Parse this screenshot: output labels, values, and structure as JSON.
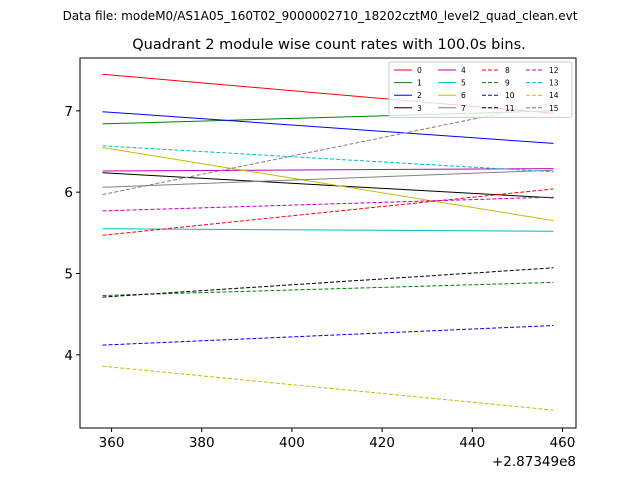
{
  "figure": {
    "suptitle": "Data file: modeM0/AS1A05_160T02_9000002710_18202cztM0_level2_quad_clean.evt",
    "title": "Quadrant 2 module wise count rates with 100.0s bins.",
    "x_offset_label": "+2.87349e8"
  },
  "chart_data": {
    "type": "line",
    "title": "Quadrant 2 module wise count rates with 100.0s bins.",
    "xlabel": "",
    "ylabel": "",
    "x_offset": 287349000,
    "xlim": [
      353,
      463
    ],
    "ylim": [
      3.1,
      7.65
    ],
    "xticks": [
      360,
      380,
      400,
      420,
      440,
      460
    ],
    "yticks": [
      4,
      5,
      6,
      7
    ],
    "xtick_labels": [
      "360",
      "380",
      "400",
      "420",
      "440",
      "460"
    ],
    "ytick_labels": [
      "4",
      "5",
      "6",
      "7"
    ],
    "grid": false,
    "legend_position": "top-right",
    "legend_columns": 4,
    "series": [
      {
        "name": "0",
        "color": "#ff0000",
        "style": "solid",
        "x": [
          358,
          458
        ],
        "y": [
          7.45,
          6.97
        ]
      },
      {
        "name": "1",
        "color": "#008000",
        "style": "solid",
        "x": [
          358,
          458
        ],
        "y": [
          6.84,
          7.0
        ]
      },
      {
        "name": "2",
        "color": "#0000ff",
        "style": "solid",
        "x": [
          358,
          458
        ],
        "y": [
          6.99,
          6.6
        ]
      },
      {
        "name": "3",
        "color": "#000000",
        "style": "solid",
        "x": [
          358,
          458
        ],
        "y": [
          6.24,
          5.93
        ]
      },
      {
        "name": "4",
        "color": "#bf00bf",
        "style": "solid",
        "x": [
          358,
          458
        ],
        "y": [
          6.26,
          6.29
        ]
      },
      {
        "name": "5",
        "color": "#00bfbf",
        "style": "solid",
        "x": [
          358,
          458
        ],
        "y": [
          5.55,
          5.52
        ]
      },
      {
        "name": "6",
        "color": "#bfbf00",
        "style": "solid",
        "x": [
          358,
          458
        ],
        "y": [
          6.55,
          5.65
        ]
      },
      {
        "name": "7",
        "color": "#808080",
        "style": "solid",
        "x": [
          358,
          458
        ],
        "y": [
          6.06,
          6.27
        ]
      },
      {
        "name": "8",
        "color": "#ff0000",
        "style": "dashed",
        "x": [
          358,
          458
        ],
        "y": [
          5.47,
          6.04
        ]
      },
      {
        "name": "9",
        "color": "#008000",
        "style": "dashed",
        "x": [
          358,
          458
        ],
        "y": [
          4.73,
          4.89
        ]
      },
      {
        "name": "10",
        "color": "#0000ff",
        "style": "dashed",
        "x": [
          358,
          458
        ],
        "y": [
          4.12,
          4.36
        ]
      },
      {
        "name": "11",
        "color": "#000000",
        "style": "dashed",
        "x": [
          358,
          458
        ],
        "y": [
          4.71,
          5.07
        ]
      },
      {
        "name": "12",
        "color": "#bf00bf",
        "style": "dashed",
        "x": [
          358,
          458
        ],
        "y": [
          5.77,
          5.94
        ]
      },
      {
        "name": "13",
        "color": "#00bfbf",
        "style": "dashed",
        "x": [
          358,
          458
        ],
        "y": [
          6.57,
          6.25
        ]
      },
      {
        "name": "14",
        "color": "#bfbf00",
        "style": "dashed",
        "x": [
          358,
          458
        ],
        "y": [
          3.86,
          3.32
        ]
      },
      {
        "name": "15",
        "color": "#808080",
        "style": "dashed",
        "x": [
          358,
          458
        ],
        "y": [
          5.97,
          7.1
        ]
      }
    ]
  }
}
